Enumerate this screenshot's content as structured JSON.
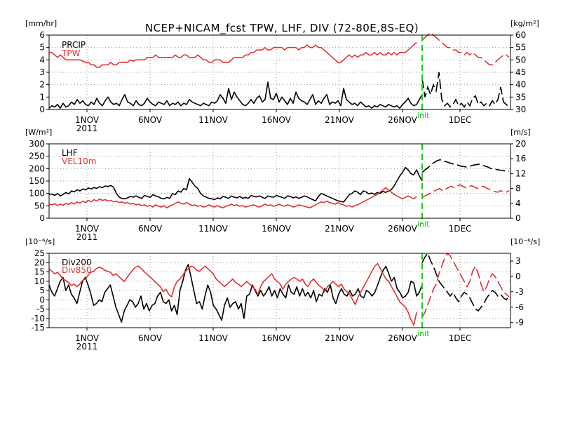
{
  "chart_data": [
    {
      "type": "line",
      "title": "NCEP+NICAM_fcst TPW, LHF, DIV (72-80E,8S-EQ)",
      "left_unit": "[mm/hr]",
      "right_unit": "[kg/m²]",
      "left_ylim": [
        0,
        6
      ],
      "left_ticks": [
        "0",
        "1",
        "2",
        "3",
        "4",
        "5",
        "6"
      ],
      "right_ylim": [
        30,
        60
      ],
      "right_ticks": [
        "30",
        "35",
        "40",
        "45",
        "50",
        "55",
        "60"
      ],
      "x_tick_labels": [
        "1NOV",
        "6NOV",
        "11NOV",
        "16NOV",
        "21NOV",
        "26NOV",
        "1DEC"
      ],
      "x_year_label": "2011",
      "init_label": "init",
      "series": [
        {
          "name": "PRCIP",
          "color": "#000000",
          "axis": "left",
          "values": [
            0.1,
            0.3,
            0.2,
            0.4,
            0.1,
            0.5,
            0.2,
            0.3,
            0.6,
            0.4,
            0.8,
            0.5,
            0.7,
            0.4,
            0.3,
            0.6,
            0.4,
            0.9,
            0.5,
            0.3,
            0.7,
            1.0,
            0.6,
            0.4,
            0.5,
            0.3,
            0.8,
            1.2,
            0.6,
            0.5,
            0.3,
            0.7,
            0.4,
            0.3,
            0.5,
            0.9,
            0.6,
            0.4,
            0.3,
            0.6,
            0.5,
            0.4,
            0.7,
            0.3,
            0.5,
            0.4,
            0.6,
            0.3,
            0.5,
            0.4,
            0.8,
            0.6,
            0.5,
            0.4,
            0.3,
            0.5,
            0.4,
            0.3,
            0.6,
            0.5,
            0.7,
            1.2,
            0.9,
            0.5,
            1.7,
            0.8,
            1.4,
            1.0,
            0.7,
            0.4,
            0.3,
            0.5,
            0.8,
            0.5,
            0.9,
            1.1,
            0.6,
            0.8,
            2.2,
            0.9,
            0.8,
            1.3,
            0.6,
            1.0,
            0.7,
            0.4,
            0.9,
            0.5,
            1.4,
            0.9,
            0.7,
            0.6,
            0.4,
            0.8,
            1.2,
            0.4,
            0.7,
            0.5,
            0.9,
            1.2,
            0.4,
            0.6,
            0.5,
            0.7,
            0.3,
            1.7,
            0.8,
            0.6,
            0.4,
            0.5,
            0.3,
            0.6,
            0.4,
            0.2,
            0.3,
            0.1,
            0.3,
            0.2,
            0.4,
            0.3,
            0.2,
            0.4,
            0.3,
            0.2,
            0.3,
            0.1,
            0.4,
            0.6,
            0.9,
            0.5,
            0.3,
            0.4,
            0.8,
            1.2
          ]
        },
        {
          "name": "TPW",
          "color": "#dd3333",
          "axis": "right",
          "values": [
            53,
            53,
            52,
            51,
            52,
            51,
            50,
            50,
            50,
            50,
            50,
            50,
            49.5,
            49,
            49,
            48,
            48,
            47,
            47,
            48,
            48,
            48,
            49,
            48,
            48,
            49,
            49,
            49,
            49,
            50,
            49.5,
            50,
            50,
            50,
            50,
            51,
            51,
            51,
            52,
            51,
            51,
            51,
            51,
            51,
            51,
            52,
            51,
            51,
            52,
            52,
            51,
            51,
            51,
            52,
            51,
            50,
            50,
            49,
            49,
            50,
            50,
            50,
            49,
            49,
            49,
            50,
            51,
            51,
            51,
            51,
            52,
            52,
            53,
            53,
            54,
            54,
            54,
            55,
            54,
            54,
            55,
            55,
            55,
            55,
            54,
            55,
            55,
            55,
            55,
            54,
            55,
            55,
            56,
            55,
            55,
            56,
            55,
            55,
            54,
            53,
            52,
            51,
            50,
            49,
            49,
            50,
            51,
            52,
            51,
            52,
            51,
            52,
            52,
            53,
            52,
            52,
            53,
            52,
            53,
            52,
            52,
            53,
            52,
            53,
            52,
            53,
            53,
            53,
            54,
            55,
            56,
            57
          ]
        }
      ],
      "forecast_series": [
        {
          "name": "PRCIP",
          "values": [
            2.5,
            1.0,
            1.8,
            1.2,
            2.0,
            1.5,
            3.0,
            0.8,
            0.3,
            0.5,
            0.2,
            0.4,
            0.8,
            0.3,
            0.5,
            0.2,
            0.6,
            0.3,
            0.9,
            1.1,
            0.4,
            0.6,
            0.3,
            0.5,
            0.3,
            0.7,
            0.4,
            0.8,
            1.8,
            0.6,
            0.4,
            0.2
          ]
        },
        {
          "name": "TPW",
          "values": [
            58,
            59,
            60,
            61,
            60,
            59,
            58,
            57,
            56,
            55,
            55,
            54,
            54,
            53,
            53,
            52,
            53,
            52,
            53,
            52,
            51,
            51,
            50,
            49,
            48,
            48,
            49,
            50,
            51,
            52,
            52,
            51
          ]
        }
      ]
    },
    {
      "type": "line",
      "left_unit": "[W/m²]",
      "right_unit": "[m/s]",
      "left_ylim": [
        0,
        300
      ],
      "left_ticks": [
        "0",
        "50",
        "100",
        "150",
        "200",
        "250",
        "300"
      ],
      "right_ylim": [
        0,
        20
      ],
      "right_ticks": [
        "0",
        "4",
        "8",
        "12",
        "16",
        "20"
      ],
      "x_tick_labels": [
        "1NOV",
        "6NOV",
        "11NOV",
        "16NOV",
        "21NOV",
        "26NOV",
        "1DEC"
      ],
      "x_year_label": "2011",
      "init_label": "init",
      "series": [
        {
          "name": "LHF",
          "color": "#000000",
          "axis": "left",
          "values": [
            95,
            98,
            92,
            100,
            90,
            96,
            104,
            98,
            110,
            106,
            115,
            110,
            118,
            114,
            122,
            118,
            124,
            120,
            127,
            123,
            130,
            128,
            132,
            125,
            100,
            85,
            80,
            78,
            82,
            88,
            85,
            90,
            84,
            80,
            92,
            88,
            84,
            95,
            90,
            86,
            80,
            78,
            84,
            80,
            100,
            95,
            110,
            105,
            120,
            115,
            160,
            145,
            130,
            120,
            100,
            90,
            85,
            80,
            78,
            75,
            82,
            78,
            88,
            84,
            80,
            90,
            85,
            82,
            88,
            80,
            84,
            80,
            92,
            88,
            86,
            90,
            84,
            80,
            90,
            86,
            85,
            92,
            88,
            84,
            80,
            90,
            88,
            82,
            86,
            80,
            84,
            90,
            86,
            80,
            75,
            70,
            88,
            100,
            95,
            90,
            85,
            80,
            75,
            70,
            68,
            65,
            80,
            95,
            100,
            110,
            105,
            95,
            110,
            106,
            98,
            102,
            96,
            104,
            100,
            108,
            104,
            110,
            115,
            130,
            150,
            170,
            185,
            205,
            195,
            180,
            175,
            195,
            170,
            150
          ]
        },
        {
          "name": "VEL10m",
          "color": "#dd3333",
          "axis": "right",
          "values": [
            3.8,
            3.6,
            3.9,
            3.4,
            3.8,
            3.5,
            4.0,
            3.7,
            4.2,
            3.8,
            4.4,
            4.0,
            4.6,
            4.2,
            4.8,
            4.4,
            5.0,
            4.6,
            5.2,
            4.8,
            5.0,
            4.6,
            4.8,
            4.4,
            4.6,
            4.2,
            4.4,
            4.0,
            4.2,
            3.8,
            4.0,
            3.6,
            3.8,
            3.4,
            3.6,
            3.2,
            3.4,
            3.0,
            3.6,
            3.2,
            3.0,
            3.4,
            2.8,
            3.2,
            3.6,
            4.0,
            4.4,
            4.0,
            3.8,
            4.2,
            3.8,
            3.4,
            3.6,
            3.2,
            3.4,
            3.0,
            3.2,
            3.6,
            3.2,
            3.0,
            3.4,
            3.0,
            2.8,
            3.2,
            3.4,
            3.8,
            3.4,
            3.6,
            3.2,
            3.4,
            3.0,
            3.2,
            3.4,
            3.6,
            3.2,
            3.0,
            3.4,
            3.8,
            3.4,
            3.6,
            3.2,
            3.4,
            3.8,
            3.4,
            3.2,
            3.6,
            3.4,
            3.0,
            3.2,
            3.6,
            3.4,
            3.2,
            3.0,
            2.8,
            3.2,
            3.6,
            4.0,
            4.4,
            4.2,
            4.6,
            4.2,
            4.0,
            3.8,
            4.2,
            3.8,
            3.6,
            3.2,
            3.4,
            3.0,
            3.4,
            3.6,
            4.0,
            4.4,
            4.8,
            5.2,
            5.6,
            6.0,
            6.4,
            7.0,
            7.6,
            8.2,
            7.6,
            7.0,
            6.4,
            6.0,
            5.6,
            5.2,
            5.6,
            6.0,
            5.6,
            5.2,
            5.8
          ]
        }
      ],
      "forecast_series": [
        {
          "name": "LHF",
          "values": [
            185,
            195,
            205,
            215,
            225,
            232,
            236,
            230,
            228,
            224,
            220,
            218,
            214,
            210,
            208,
            206,
            210,
            214,
            216,
            218,
            214,
            210,
            206,
            200,
            198,
            196,
            194,
            192,
            190,
            190
          ]
        },
        {
          "name": "VEL10m",
          "values": [
            5.6,
            6.0,
            6.4,
            6.8,
            7.2,
            7.6,
            8.0,
            7.4,
            7.8,
            8.2,
            8.6,
            8.2,
            8.6,
            9.0,
            8.6,
            8.2,
            8.4,
            8.8,
            8.4,
            8.0,
            8.4,
            8.6,
            8.2,
            7.8,
            7.4,
            7.2,
            7.0,
            7.4,
            7.2,
            7.0,
            7.4
          ]
        }
      ]
    },
    {
      "type": "line",
      "left_unit": "[10⁻⁶/s]",
      "right_unit": "[10⁻⁶/s]",
      "left_ylim": [
        -15,
        25
      ],
      "left_ticks": [
        "-15",
        "-10",
        "-5",
        "0",
        "5",
        "10",
        "15",
        "20",
        "25"
      ],
      "right_ylim": [
        -10,
        4.5
      ],
      "right_ticks": [
        "-9",
        "-6",
        "-3",
        "0",
        "3"
      ],
      "x_tick_labels": [
        "1NOV",
        "6NOV",
        "11NOV",
        "16NOV",
        "21NOV",
        "26NOV",
        "1DEC"
      ],
      "x_year_label": "2011",
      "init_label": "init",
      "series": [
        {
          "name": "Div200",
          "color": "#000000",
          "axis": "left",
          "values": [
            8,
            4,
            2,
            6,
            10,
            12,
            5,
            8,
            3,
            1,
            -2,
            4,
            10,
            12,
            8,
            3,
            -3,
            -2,
            0,
            -1,
            4,
            6,
            8,
            2,
            -4,
            -8,
            -12,
            -6,
            -3,
            0,
            -1,
            -4,
            -2,
            2,
            -5,
            -2,
            -6,
            -3,
            -2,
            2,
            4,
            -1,
            -2,
            0,
            -6,
            -3,
            -8,
            5,
            10,
            16,
            19,
            12,
            5,
            -2,
            -1,
            -5,
            2,
            8,
            4,
            -3,
            -5,
            -8,
            -11,
            -3,
            1,
            -4,
            -2,
            -1,
            -5,
            -2,
            -10,
            2,
            3,
            8,
            5,
            2,
            5,
            2,
            4,
            7,
            2,
            5,
            1,
            6,
            3,
            1,
            8,
            4,
            3,
            7,
            2,
            6,
            2,
            4,
            1,
            5,
            -1,
            3,
            2,
            6,
            4,
            8,
            1,
            -2,
            3,
            6,
            3,
            2,
            5,
            2,
            3,
            6,
            2,
            1,
            5,
            4,
            2,
            4,
            8,
            12,
            16,
            18,
            14,
            10,
            12,
            6,
            4,
            1,
            2,
            4,
            10,
            9,
            2,
            4,
            8
          ]
        },
        {
          "name": "Div850",
          "color": "#dd3333",
          "axis": "right",
          "values": [
            1.5,
            1.0,
            0.5,
            0.8,
            0.2,
            -0.5,
            -0.8,
            -1.2,
            -1.8,
            -1.5,
            -2.0,
            -1.5,
            -0.8,
            -0.5,
            0.2,
            0.8,
            1.0,
            1.5,
            1.8,
            1.6,
            1.2,
            1.0,
            0.8,
            0.2,
            0.5,
            0.0,
            -0.5,
            -1.0,
            -0.2,
            0.5,
            1.2,
            1.8,
            2.0,
            1.6,
            1.0,
            0.5,
            0.0,
            -0.5,
            -1.0,
            -1.5,
            -2.0,
            -3.0,
            -2.5,
            -3.5,
            -4.0,
            -2.0,
            -1.0,
            -0.5,
            0.2,
            1.0,
            1.5,
            2.0,
            1.8,
            1.2,
            1.0,
            1.5,
            2.0,
            1.5,
            1.0,
            0.5,
            -0.5,
            -1.0,
            -1.5,
            -2.0,
            -1.5,
            -1.0,
            -0.5,
            -1.2,
            -1.5,
            -2.0,
            -1.5,
            -1.0,
            -1.5,
            -2.0,
            -2.5,
            -3.5,
            -2.0,
            -1.0,
            -0.5,
            0.0,
            0.5,
            -0.5,
            -1.0,
            -1.5,
            -2.5,
            -1.5,
            -1.0,
            -0.5,
            -0.2,
            -0.5,
            -1.0,
            -0.5,
            -1.5,
            -2.0,
            -1.0,
            -0.5,
            -1.2,
            -1.8,
            -2.2,
            -3.0,
            -2.0,
            -1.5,
            -1.0,
            -1.5,
            -2.0,
            -1.5,
            -2.5,
            -3.0,
            -3.5,
            -4.5,
            -5.5,
            -4.0,
            -3.0,
            -2.0,
            -1.0,
            0.0,
            1.0,
            2.0,
            2.5,
            1.5,
            0.5,
            -0.5,
            -1.0,
            -2.0,
            -3.0,
            -4.0,
            -5.0,
            -5.5,
            -6.0,
            -7.0,
            -8.5,
            -9.5,
            -7.0
          ]
        }
      ],
      "forecast_series": [
        {
          "name": "Div200",
          "values": [
            20,
            23,
            25,
            21,
            18,
            14,
            10,
            8,
            6,
            4,
            2,
            4,
            1,
            -1,
            2,
            4,
            3,
            1,
            -2,
            -5,
            -6,
            -4,
            -2,
            1,
            3,
            5,
            4,
            2,
            3,
            1,
            0,
            2
          ]
        },
        {
          "name": "Div850",
          "values": [
            -8.0,
            -7.0,
            -5.5,
            -4.0,
            -2.5,
            -1.5,
            0.5,
            2.0,
            3.5,
            4.5,
            4.0,
            3.0,
            2.0,
            1.0,
            0.0,
            -1.0,
            -2.0,
            -1.0,
            1.0,
            2.0,
            0.5,
            -1.5,
            -3.0,
            -2.0,
            -0.5,
            0.5,
            0.0,
            -1.0,
            -2.0,
            -3.0,
            -3.5,
            -4.0
          ]
        }
      ]
    }
  ]
}
